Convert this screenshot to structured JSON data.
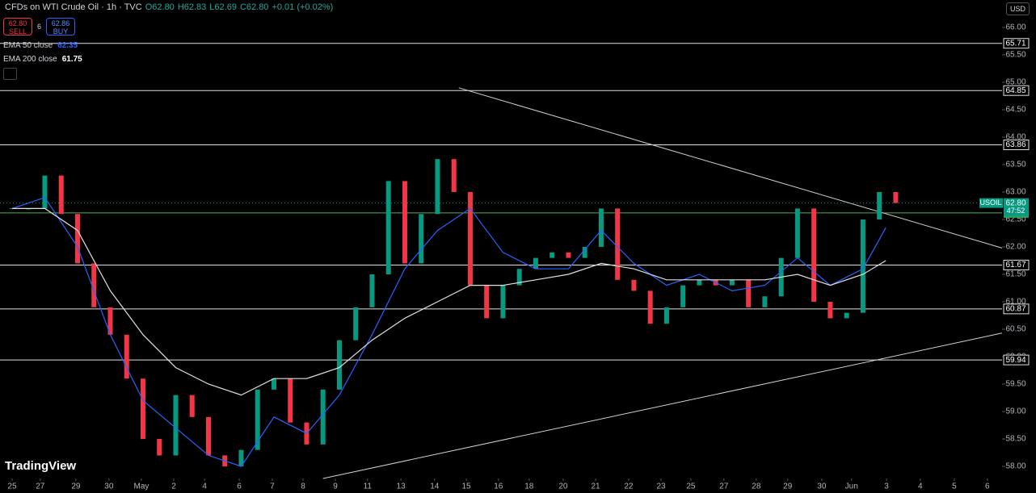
{
  "header": {
    "symbol": "CFDs on WTI Crude Oil · 1h · TVC",
    "ohlc": [
      "O62.80",
      "H62.83",
      "L62.69",
      "C62.80",
      "+0.01 (+0.02%)"
    ],
    "sell_price": "62.80",
    "sell_label": "SELL",
    "spread": "6",
    "buy_price": "62.86",
    "buy_label": "BUY",
    "currency": "USD",
    "logo": "TradingView"
  },
  "chart_data": {
    "type": "candlestick",
    "up_color": "#089981",
    "down_color": "#f23645",
    "x": [
      0,
      0.5,
      1,
      1.5,
      2,
      2.5,
      3,
      3.5,
      4,
      4.5,
      5,
      5.5,
      6,
      6.5,
      7,
      7.5,
      8,
      8.5,
      9,
      9.5,
      10,
      10.5,
      11,
      11.5,
      12,
      12.5,
      13,
      13.5,
      14,
      14.5,
      15,
      15.5,
      16,
      16.5,
      17,
      17.5,
      18,
      18.5,
      19,
      19.5,
      20,
      20.5,
      21,
      21.5,
      22,
      22.5,
      23,
      23.5,
      24,
      24.5,
      25,
      25.5,
      26,
      26.5,
      27
    ],
    "values": [
      62.7,
      62.7,
      63.3,
      62.6,
      61.7,
      60.9,
      60.4,
      59.6,
      58.5,
      58.2,
      59.3,
      58.9,
      58.2,
      58.0,
      58.3,
      59.4,
      59.6,
      58.8,
      58.4,
      59.4,
      60.3,
      60.9,
      61.5,
      63.2,
      61.7,
      62.6,
      63.6,
      63.0,
      61.3,
      60.7,
      61.3,
      61.6,
      61.8,
      61.9,
      61.8,
      62.0,
      62.7,
      61.4,
      61.2,
      60.6,
      60.9,
      61.3,
      61.4,
      61.3,
      61.4,
      60.9,
      61.1,
      61.8,
      62.7,
      61.0,
      60.7,
      60.8,
      62.5,
      63.0,
      62.8
    ],
    "series": [
      {
        "name": "EMA 50 close",
        "color": "#2962ff",
        "x": [
          0,
          1,
          2,
          3,
          4,
          5,
          6,
          7,
          8,
          9,
          10,
          11,
          12,
          13,
          14,
          15,
          16,
          17,
          18,
          19,
          20,
          21,
          22,
          23,
          24,
          25,
          26,
          26.7
        ],
        "values": [
          62.7,
          62.9,
          62.0,
          60.4,
          59.2,
          58.7,
          58.2,
          58.0,
          58.9,
          58.6,
          59.3,
          60.4,
          61.6,
          62.3,
          62.7,
          61.9,
          61.6,
          61.6,
          62.3,
          61.7,
          61.3,
          61.5,
          61.2,
          61.3,
          61.8,
          61.3,
          61.6,
          62.35
        ]
      },
      {
        "name": "EMA 200 close",
        "color": "#e0e0e0",
        "x": [
          0,
          1,
          2,
          3,
          4,
          5,
          6,
          7,
          8,
          9,
          10,
          11,
          12,
          13,
          14,
          15,
          16,
          17,
          18,
          19,
          20,
          21,
          22,
          23,
          24,
          25,
          26,
          26.7
        ],
        "values": [
          62.7,
          62.7,
          62.3,
          61.2,
          60.4,
          59.8,
          59.5,
          59.3,
          59.6,
          59.6,
          59.8,
          60.3,
          60.7,
          61.0,
          61.3,
          61.3,
          61.4,
          61.5,
          61.7,
          61.6,
          61.4,
          61.4,
          61.4,
          61.4,
          61.5,
          61.3,
          61.5,
          61.75
        ]
      }
    ],
    "levels": [
      65.71,
      64.85,
      63.86,
      62.62,
      61.67,
      60.87,
      59.94
    ],
    "trendlines": [
      {
        "x": [
          13.65,
          30.25
        ],
        "values": [
          64.9,
          61.98
        ]
      },
      {
        "x": [
          9.5,
          30.25
        ],
        "values": [
          57.78,
          60.43
        ]
      }
    ],
    "current_tag": "USOIL",
    "current_price": "62.80",
    "countdown": "47:52",
    "xlim": [
      -0.37,
      30.25
    ],
    "ylim": [
      57.78,
      66.5
    ],
    "xticks": [
      {
        "value": 0,
        "label": "25"
      },
      {
        "value": 0.86,
        "label": "27"
      },
      {
        "value": 1.95,
        "label": "29"
      },
      {
        "value": 2.96,
        "label": "30"
      },
      {
        "value": 3.95,
        "label": "May"
      },
      {
        "value": 4.94,
        "label": "2"
      },
      {
        "value": 5.88,
        "label": "4"
      },
      {
        "value": 6.94,
        "label": "6"
      },
      {
        "value": 7.95,
        "label": "7"
      },
      {
        "value": 8.89,
        "label": "8"
      },
      {
        "value": 9.88,
        "label": "9"
      },
      {
        "value": 10.86,
        "label": "11"
      },
      {
        "value": 11.88,
        "label": "13"
      },
      {
        "value": 12.91,
        "label": "14"
      },
      {
        "value": 13.88,
        "label": "15"
      },
      {
        "value": 14.86,
        "label": "16"
      },
      {
        "value": 15.8,
        "label": "18"
      },
      {
        "value": 16.84,
        "label": "20"
      },
      {
        "value": 17.83,
        "label": "21"
      },
      {
        "value": 18.84,
        "label": "22"
      },
      {
        "value": 19.83,
        "label": "23"
      },
      {
        "value": 20.74,
        "label": "25"
      },
      {
        "value": 21.75,
        "label": "27"
      },
      {
        "value": 22.74,
        "label": "28"
      },
      {
        "value": 23.7,
        "label": "29"
      },
      {
        "value": 24.74,
        "label": "30"
      },
      {
        "value": 25.65,
        "label": "Jun"
      },
      {
        "value": 26.72,
        "label": "3"
      },
      {
        "value": 27.75,
        "label": "4"
      },
      {
        "value": 28.79,
        "label": "5"
      },
      {
        "value": 29.8,
        "label": "6"
      }
    ],
    "yticks": [
      {
        "value": 58,
        "label": "58.00"
      },
      {
        "value": 58.5,
        "label": "58.50"
      },
      {
        "value": 59,
        "label": "59.00"
      },
      {
        "value": 59.5,
        "label": "59.50"
      },
      {
        "value": 60,
        "label": "60.00"
      },
      {
        "value": 60.5,
        "label": "60.50"
      },
      {
        "value": 61,
        "label": "61.00"
      },
      {
        "value": 61.5,
        "label": "61.50"
      },
      {
        "value": 62,
        "label": "62.00"
      },
      {
        "value": 62.5,
        "label": "62.50"
      },
      {
        "value": 63,
        "label": "63.00"
      },
      {
        "value": 63.5,
        "label": "63.50"
      },
      {
        "value": 64,
        "label": "64.00"
      },
      {
        "value": 64.5,
        "label": "64.50"
      },
      {
        "value": 65,
        "label": "65.00"
      },
      {
        "value": 65.5,
        "label": "65.50"
      },
      {
        "value": 66,
        "label": "66.00"
      }
    ]
  }
}
